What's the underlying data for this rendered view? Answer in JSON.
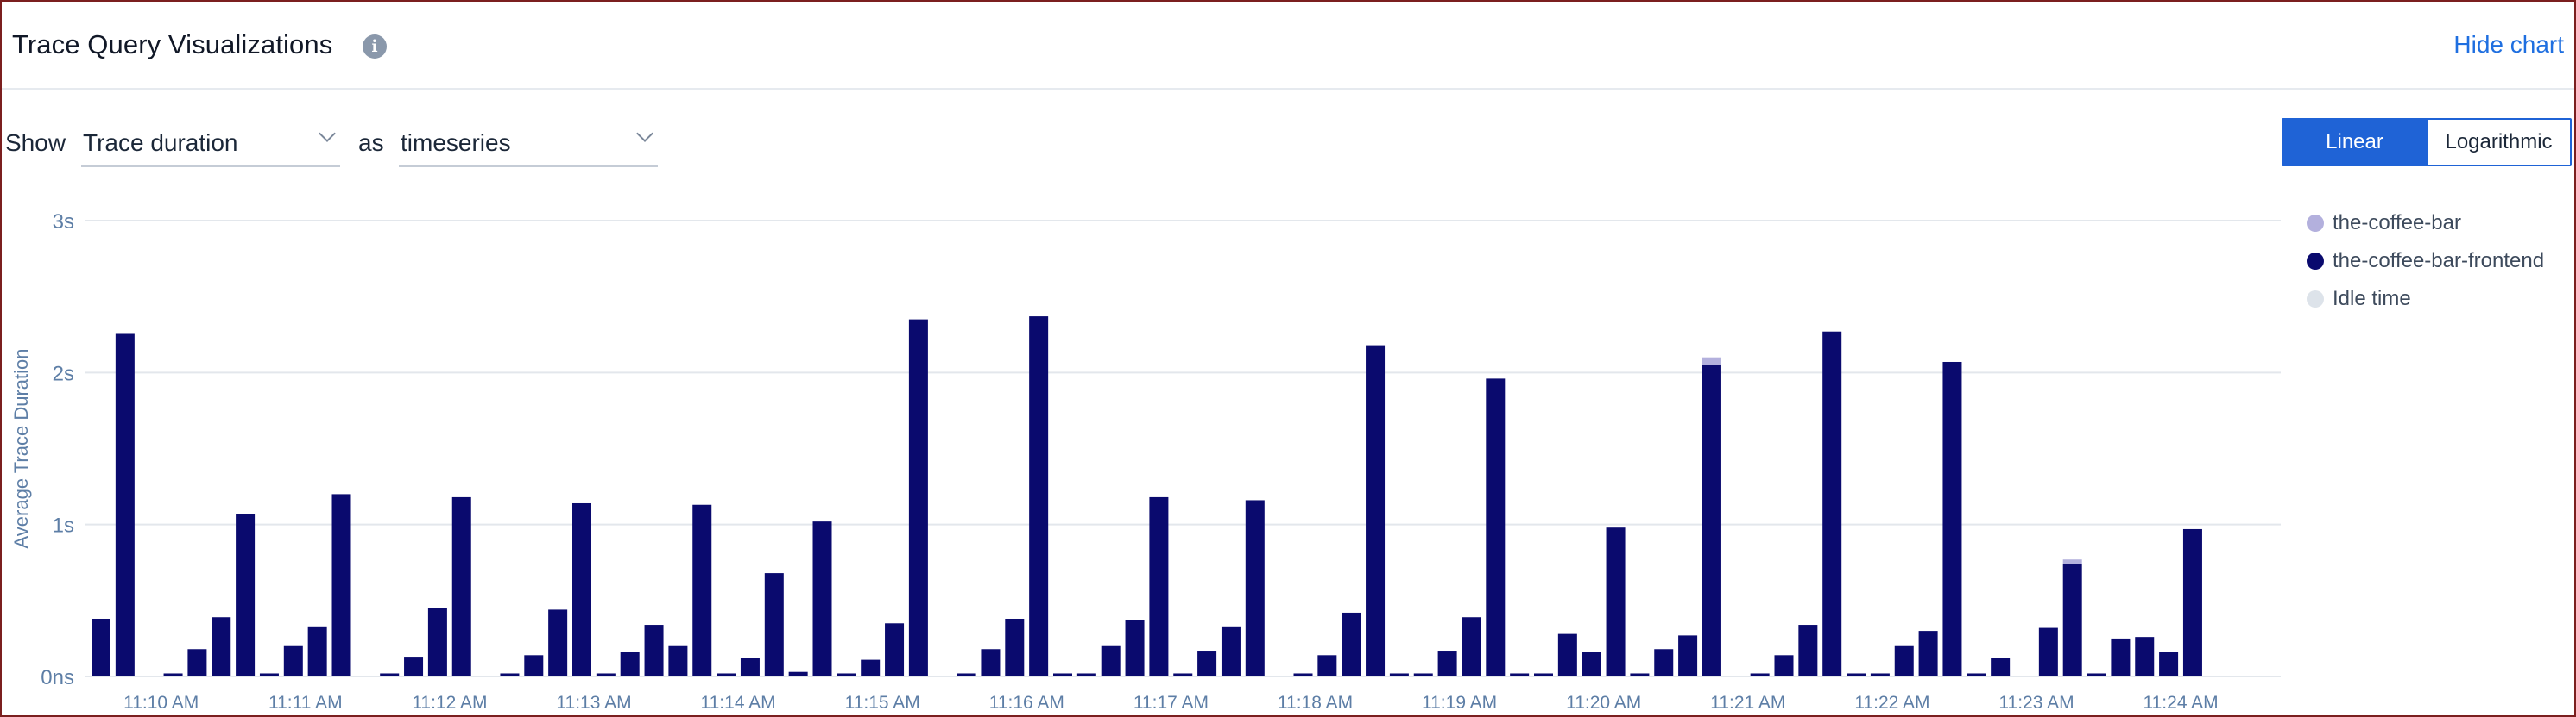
{
  "header": {
    "title": "Trace Query Visualizations",
    "info_icon": "info-icon",
    "hide_chart_label": "Hide chart"
  },
  "controls": {
    "show_label": "Show",
    "metric_value": "Trace duration",
    "as_label": "as",
    "view_value": "timeseries",
    "scale_options": [
      "Linear",
      "Logarithmic"
    ],
    "scale_selected": "Linear"
  },
  "colors": {
    "accent": "#1f63d6",
    "link": "#1f6fe0",
    "frontend": "#0a0a6e",
    "coffee_bar": "#b3b0dd",
    "idle_time": "#dde3ea",
    "axis_text": "#5d7ea6"
  },
  "chart_data": {
    "type": "bar",
    "ylabel": "Average Trace Duration",
    "xlabel": "",
    "y_unit": "s",
    "ylim": [
      0,
      3
    ],
    "yticks": [
      {
        "value": 0,
        "label": "0ns"
      },
      {
        "value": 1,
        "label": "1s"
      },
      {
        "value": 2,
        "label": "2s"
      },
      {
        "value": 3,
        "label": "3s"
      }
    ],
    "grid": true,
    "legend_position": "right",
    "x_ticks": [
      {
        "index": 2,
        "label": "11:10 AM"
      },
      {
        "index": 8,
        "label": "11:11 AM"
      },
      {
        "index": 14,
        "label": "11:12 AM"
      },
      {
        "index": 20,
        "label": "11:13 AM"
      },
      {
        "index": 26,
        "label": "11:14 AM"
      },
      {
        "index": 32,
        "label": "11:15 AM"
      },
      {
        "index": 38,
        "label": "11:16 AM"
      },
      {
        "index": 44,
        "label": "11:17 AM"
      },
      {
        "index": 50,
        "label": "11:18 AM"
      },
      {
        "index": 56,
        "label": "11:19 AM"
      },
      {
        "index": 62,
        "label": "11:20 AM"
      },
      {
        "index": 68,
        "label": "11:21 AM"
      },
      {
        "index": 74,
        "label": "11:22 AM"
      },
      {
        "index": 80,
        "label": "11:23 AM"
      },
      {
        "index": 86,
        "label": "11:24 AM"
      }
    ],
    "series": [
      {
        "name": "the-coffee-bar",
        "color": "#b3b0dd",
        "values": [
          0,
          0,
          0,
          0,
          0,
          0,
          0,
          0,
          0,
          0,
          0,
          0,
          0,
          0,
          0,
          0,
          0,
          0,
          0,
          0,
          0,
          0,
          0,
          0,
          0,
          0,
          0,
          0,
          0,
          0,
          0,
          0,
          0,
          0,
          0,
          0,
          0,
          0,
          0,
          0,
          0,
          0,
          0,
          0,
          0,
          0,
          0,
          0,
          0,
          0,
          0,
          0,
          0,
          0,
          0,
          0,
          0,
          0,
          0,
          0,
          0,
          0,
          0,
          0,
          0,
          0,
          0,
          0.05,
          0,
          0,
          0,
          0,
          0,
          0,
          0,
          0,
          0,
          0,
          0,
          0,
          0,
          0,
          0.03,
          0,
          0,
          0,
          0,
          0
        ]
      },
      {
        "name": "the-coffee-bar-frontend",
        "color": "#0a0a6e",
        "values": [
          0.38,
          2.26,
          0,
          0.02,
          0.18,
          0.39,
          1.07,
          0.02,
          0.2,
          0.33,
          1.2,
          0,
          0.02,
          0.13,
          0.45,
          1.18,
          0,
          0.02,
          0.14,
          0.44,
          1.14,
          0.02,
          0.16,
          0.34,
          0.2,
          1.13,
          0.02,
          0.12,
          0.68,
          0.03,
          1.02,
          0.02,
          0.11,
          0.35,
          2.35,
          0,
          0.02,
          0.18,
          0.38,
          2.37,
          0.02,
          0.02,
          0.2,
          0.37,
          1.18,
          0.02,
          0.17,
          0.33,
          1.16,
          0,
          0.02,
          0.14,
          0.42,
          2.18,
          0.02,
          0.02,
          0.17,
          0.39,
          1.96,
          0.02,
          0.02,
          0.28,
          0.16,
          0.98,
          0.02,
          0.18,
          0.27,
          2.05,
          0,
          0.02,
          0.14,
          0.34,
          2.27,
          0.02,
          0.02,
          0.2,
          0.3,
          2.07,
          0.02,
          0.12,
          0,
          0.32,
          0.74,
          0.02,
          0.25,
          0.26,
          0.16,
          0.97
        ]
      },
      {
        "name": "Idle time",
        "color": "#dde3ea",
        "values": []
      }
    ]
  }
}
